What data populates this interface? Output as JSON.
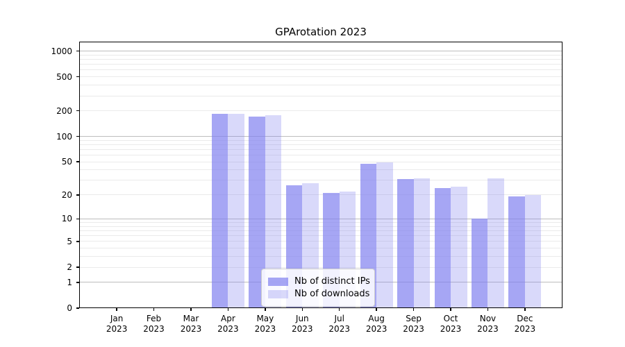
{
  "title": "GPArotation 2023",
  "legend": {
    "items": [
      {
        "label": "Nb of distinct IPs"
      },
      {
        "label": "Nb of downloads"
      }
    ]
  },
  "chart_data": {
    "type": "bar",
    "title": "GPArotation 2023",
    "categories": [
      "Jan 2023",
      "Feb 2023",
      "Mar 2023",
      "Apr 2023",
      "May 2023",
      "Jun 2023",
      "Jul 2023",
      "Aug 2023",
      "Sep 2023",
      "Oct 2023",
      "Nov 2023",
      "Dec 2023"
    ],
    "series": [
      {
        "name": "Nb of distinct IPs",
        "color": "rgba(128,128,240,0.7)",
        "values": [
          0,
          0,
          0,
          184,
          172,
          26,
          21,
          47,
          31,
          24,
          10,
          19
        ]
      },
      {
        "name": "Nb of downloads",
        "color": "rgba(128,128,240,0.3)",
        "values": [
          0,
          0,
          0,
          184,
          177,
          28,
          22,
          49,
          32,
          25,
          32,
          20
        ]
      }
    ],
    "xlabel": "",
    "ylabel": "",
    "yscale": "log1p",
    "ylim": [
      0,
      1290
    ],
    "yticks": [
      0,
      1,
      2,
      5,
      10,
      20,
      50,
      100,
      200,
      500,
      1000
    ],
    "major_gridlines": [
      1,
      10,
      100,
      1000
    ],
    "minor_gridlines": [
      2,
      3,
      4,
      5,
      6,
      7,
      8,
      9,
      20,
      30,
      40,
      50,
      60,
      70,
      80,
      90,
      200,
      300,
      400,
      500,
      600,
      700,
      800,
      900
    ],
    "grid": true,
    "legend_position": "lower center"
  }
}
